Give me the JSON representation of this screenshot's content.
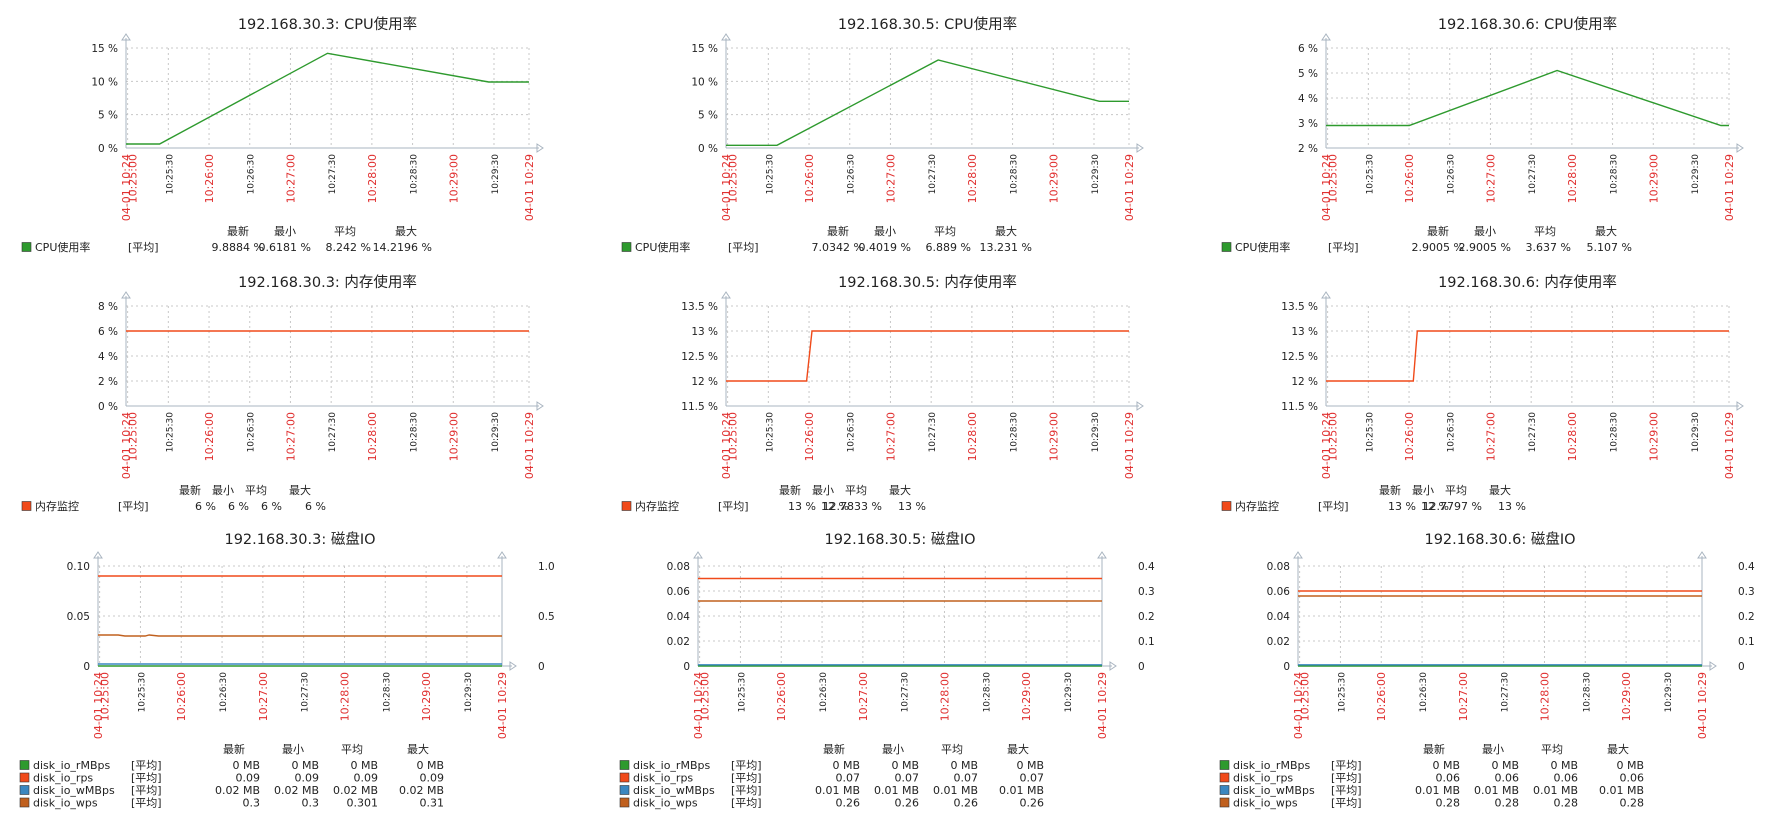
{
  "colors": {
    "grid": "#c8c8c8",
    "axis": "#a9b4c0",
    "red_tick": "#e03030",
    "text": "#222222",
    "green": "#2e9a2e",
    "orange": "#f04a1a",
    "blue": "#3a87c0",
    "brown": "#c0601e"
  },
  "x_ticks": [
    "04-01 10:24",
    "10:25:00",
    "10:25:30",
    "10:26:00",
    "10:26:30",
    "10:27:00",
    "10:27:30",
    "10:28:00",
    "10:28:30",
    "10:29:00",
    "10:29:30",
    "04-01 10:29"
  ],
  "legend_headers": [
    "最新",
    "最小",
    "平均",
    "最大"
  ],
  "chart_data": [
    {
      "type": "line",
      "title": "192.168.30.3: CPU使用率",
      "y_ticks": [
        "0 %",
        "5 %",
        "10 %",
        "15 %"
      ],
      "ylim": [
        0,
        15
      ],
      "xlim": [
        0,
        300
      ],
      "series": [
        {
          "name": "CPU使用率",
          "agg": "[平均]",
          "color": "green",
          "values_text": [
            "9.8884 %",
            "0.6181 %",
            "8.242 %",
            "14.2196 %"
          ],
          "points": [
            [
              0,
              0.6
            ],
            [
              25,
              0.6
            ],
            [
              150,
              14.2
            ],
            [
              270,
              9.9
            ],
            [
              300,
              9.9
            ]
          ]
        }
      ]
    },
    {
      "type": "line",
      "title": "192.168.30.5: CPU使用率",
      "y_ticks": [
        "0 %",
        "5 %",
        "10 %",
        "15 %"
      ],
      "ylim": [
        0,
        15
      ],
      "xlim": [
        0,
        300
      ],
      "series": [
        {
          "name": "CPU使用率",
          "agg": "[平均]",
          "color": "green",
          "values_text": [
            "7.0342 %",
            "0.4019 %",
            "6.889 %",
            "13.231 %"
          ],
          "points": [
            [
              0,
              0.4
            ],
            [
              38,
              0.4
            ],
            [
              158,
              13.2
            ],
            [
              278,
              7.0
            ],
            [
              300,
              7.0
            ]
          ]
        }
      ]
    },
    {
      "type": "line",
      "title": "192.168.30.6: CPU使用率",
      "y_ticks": [
        "2 %",
        "3 %",
        "4 %",
        "5 %",
        "6 %"
      ],
      "ylim": [
        2,
        6
      ],
      "xlim": [
        0,
        300
      ],
      "series": [
        {
          "name": "CPU使用率",
          "agg": "[平均]",
          "color": "green",
          "values_text": [
            "2.9005 %",
            "2.9005 %",
            "3.637 %",
            "5.107 %"
          ],
          "points": [
            [
              0,
              2.9
            ],
            [
              62,
              2.9
            ],
            [
              172,
              5.1
            ],
            [
              294,
              2.9
            ],
            [
              300,
              2.9
            ]
          ]
        }
      ]
    },
    {
      "type": "line",
      "title": "192.168.30.3: 内存使用率",
      "y_ticks": [
        "0 %",
        "2 %",
        "4 %",
        "6 %",
        "8 %"
      ],
      "ylim": [
        0,
        8
      ],
      "xlim": [
        0,
        300
      ],
      "series": [
        {
          "name": "内存监控",
          "agg": "[平均]",
          "color": "orange",
          "values_text": [
            "6 %",
            "6 %",
            "6 %",
            "6 %"
          ],
          "points": [
            [
              0,
              6
            ],
            [
              300,
              6
            ]
          ]
        }
      ]
    },
    {
      "type": "line",
      "title": "192.168.30.5: 内存使用率",
      "y_ticks": [
        "11.5 %",
        "12 %",
        "12.5 %",
        "13 %",
        "13.5 %"
      ],
      "ylim": [
        11.5,
        13.5
      ],
      "xlim": [
        0,
        300
      ],
      "series": [
        {
          "name": "内存监控",
          "agg": "[平均]",
          "color": "orange",
          "values_text": [
            "13 %",
            "12 %",
            "12.7833 %",
            "13 %"
          ],
          "points": [
            [
              0,
              12
            ],
            [
              60,
              12
            ],
            [
              64,
              13
            ],
            [
              300,
              13
            ]
          ]
        }
      ]
    },
    {
      "type": "line",
      "title": "192.168.30.6: 内存使用率",
      "y_ticks": [
        "11.5 %",
        "12 %",
        "12.5 %",
        "13 %",
        "13.5 %"
      ],
      "ylim": [
        11.5,
        13.5
      ],
      "xlim": [
        0,
        300
      ],
      "series": [
        {
          "name": "内存监控",
          "agg": "[平均]",
          "color": "orange",
          "values_text": [
            "13 %",
            "12 %",
            "12.7797 %",
            "13 %"
          ],
          "points": [
            [
              0,
              12
            ],
            [
              65,
              12
            ],
            [
              68,
              13
            ],
            [
              300,
              13
            ]
          ]
        }
      ]
    },
    {
      "type": "line",
      "title": "192.168.30.3: 磁盘IO",
      "y_ticks": [
        "0",
        "0.05",
        "0.10"
      ],
      "ylim": [
        0,
        0.1
      ],
      "y2_ticks": [
        "0",
        "0.5",
        "1.0"
      ],
      "y2lim": [
        0,
        1.0
      ],
      "xlim": [
        0,
        300
      ],
      "series": [
        {
          "name": "disk_io_rMBps",
          "agg": "[平均]",
          "color": "green",
          "axis": "left",
          "values_text": [
            "0 MB",
            "0 MB",
            "0 MB",
            "0 MB"
          ],
          "points": [
            [
              0,
              0
            ],
            [
              300,
              0
            ]
          ]
        },
        {
          "name": "disk_io_rps",
          "agg": "[平均]",
          "color": "orange",
          "axis": "left",
          "values_text": [
            "0.09",
            "0.09",
            "0.09",
            "0.09"
          ],
          "points": [
            [
              0,
              0.09
            ],
            [
              300,
              0.09
            ]
          ]
        },
        {
          "name": "disk_io_wMBps",
          "agg": "[平均]",
          "color": "blue",
          "axis": "left",
          "values_text": [
            "0.02 MB",
            "0.02 MB",
            "0.02 MB",
            "0.02 MB"
          ],
          "points": [
            [
              0,
              0.002
            ],
            [
              300,
              0.002
            ]
          ]
        },
        {
          "name": "disk_io_wps",
          "agg": "[平均]",
          "color": "brown",
          "axis": "right",
          "values_text": [
            "0.3",
            "0.3",
            "0.301",
            "0.31"
          ],
          "points": [
            [
              0,
              0.31
            ],
            [
              15,
              0.31
            ],
            [
              20,
              0.3
            ],
            [
              35,
              0.3
            ],
            [
              38,
              0.31
            ],
            [
              45,
              0.3
            ],
            [
              300,
              0.3
            ]
          ]
        }
      ]
    },
    {
      "type": "line",
      "title": "192.168.30.5: 磁盘IO",
      "y_ticks": [
        "0",
        "0.02",
        "0.04",
        "0.06",
        "0.08"
      ],
      "ylim": [
        0,
        0.08
      ],
      "y2_ticks": [
        "0",
        "0.1",
        "0.2",
        "0.3",
        "0.4"
      ],
      "y2lim": [
        0,
        0.4
      ],
      "xlim": [
        0,
        300
      ],
      "series": [
        {
          "name": "disk_io_rMBps",
          "agg": "[平均]",
          "color": "green",
          "axis": "left",
          "values_text": [
            "0 MB",
            "0 MB",
            "0 MB",
            "0 MB"
          ],
          "points": [
            [
              0,
              0
            ],
            [
              300,
              0
            ]
          ]
        },
        {
          "name": "disk_io_rps",
          "agg": "[平均]",
          "color": "orange",
          "axis": "left",
          "values_text": [
            "0.07",
            "0.07",
            "0.07",
            "0.07"
          ],
          "points": [
            [
              0,
              0.07
            ],
            [
              300,
              0.07
            ]
          ]
        },
        {
          "name": "disk_io_wMBps",
          "agg": "[平均]",
          "color": "blue",
          "axis": "left",
          "values_text": [
            "0.01 MB",
            "0.01 MB",
            "0.01 MB",
            "0.01 MB"
          ],
          "points": [
            [
              0,
              0.001
            ],
            [
              300,
              0.001
            ]
          ]
        },
        {
          "name": "disk_io_wps",
          "agg": "[平均]",
          "color": "brown",
          "axis": "right",
          "values_text": [
            "0.26",
            "0.26",
            "0.26",
            "0.26"
          ],
          "points": [
            [
              0,
              0.26
            ],
            [
              300,
              0.26
            ]
          ]
        }
      ]
    },
    {
      "type": "line",
      "title": "192.168.30.6: 磁盘IO",
      "y_ticks": [
        "0",
        "0.02",
        "0.04",
        "0.06",
        "0.08"
      ],
      "ylim": [
        0,
        0.08
      ],
      "y2_ticks": [
        "0",
        "0.1",
        "0.2",
        "0.3",
        "0.4"
      ],
      "y2lim": [
        0,
        0.4
      ],
      "xlim": [
        0,
        300
      ],
      "series": [
        {
          "name": "disk_io_rMBps",
          "agg": "[平均]",
          "color": "green",
          "axis": "left",
          "values_text": [
            "0 MB",
            "0 MB",
            "0 MB",
            "0 MB"
          ],
          "points": [
            [
              0,
              0
            ],
            [
              300,
              0
            ]
          ]
        },
        {
          "name": "disk_io_rps",
          "agg": "[平均]",
          "color": "orange",
          "axis": "left",
          "values_text": [
            "0.06",
            "0.06",
            "0.06",
            "0.06"
          ],
          "points": [
            [
              0,
              0.06
            ],
            [
              300,
              0.06
            ]
          ]
        },
        {
          "name": "disk_io_wMBps",
          "agg": "[平均]",
          "color": "blue",
          "axis": "left",
          "values_text": [
            "0.01 MB",
            "0.01 MB",
            "0.01 MB",
            "0.01 MB"
          ],
          "points": [
            [
              0,
              0.001
            ],
            [
              300,
              0.001
            ]
          ]
        },
        {
          "name": "disk_io_wps",
          "agg": "[平均]",
          "color": "brown",
          "axis": "right",
          "values_text": [
            "0.28",
            "0.28",
            "0.28",
            "0.28"
          ],
          "points": [
            [
              0,
              0.28
            ],
            [
              300,
              0.28
            ]
          ]
        }
      ]
    }
  ]
}
